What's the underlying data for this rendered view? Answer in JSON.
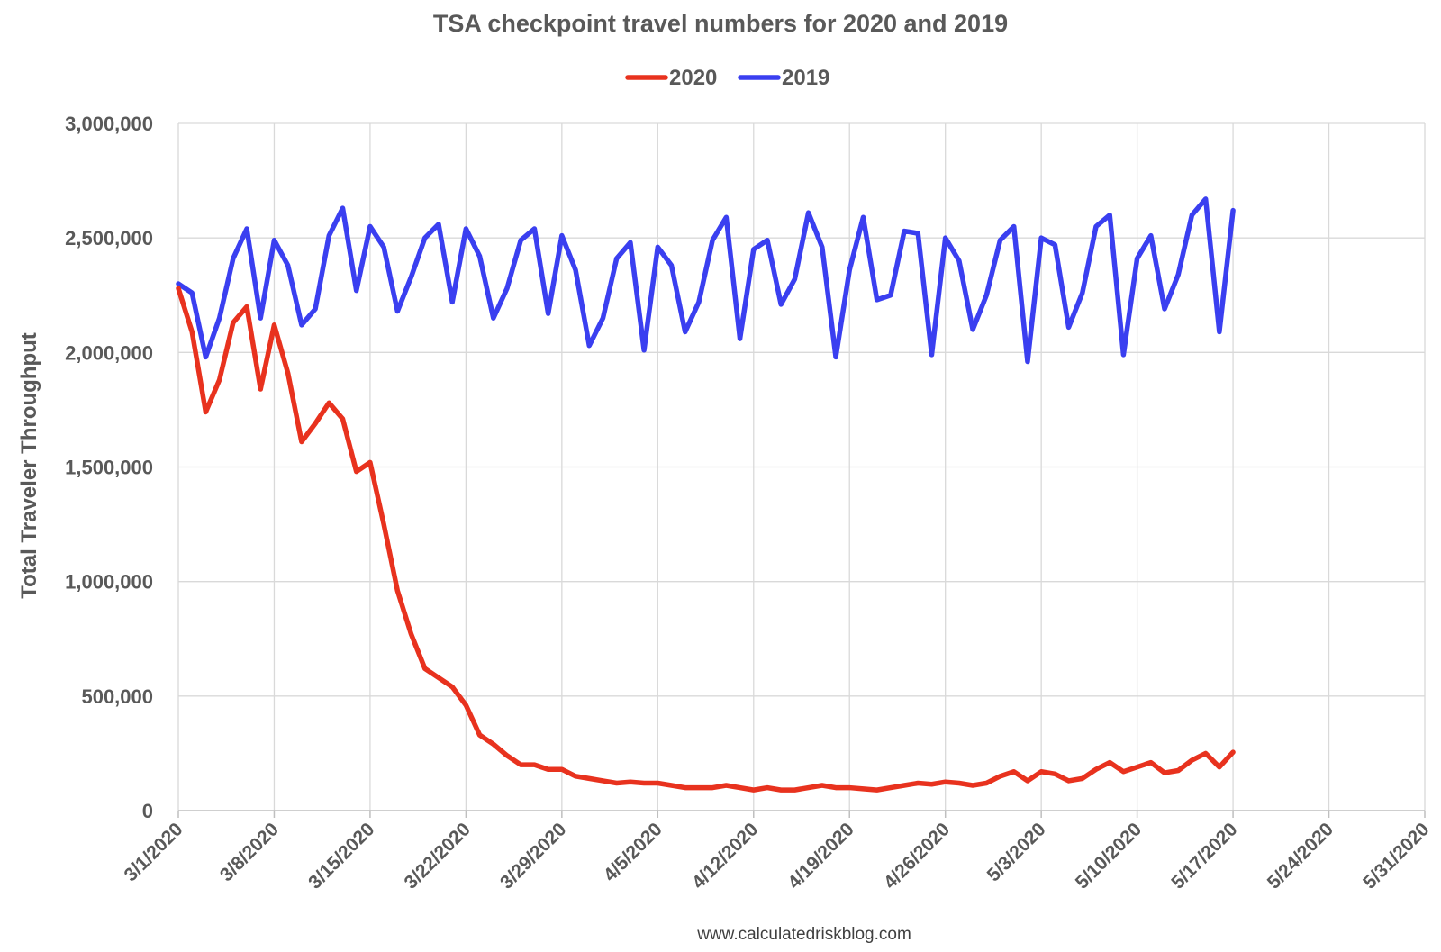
{
  "chart_data": {
    "type": "line",
    "title": "TSA checkpoint travel numbers for 2020 and 2019",
    "ylabel": "Total Traveler Throughput",
    "xlabel": "",
    "source_credit": "www.calculatedriskblog.com",
    "x_start": "3/1/2020",
    "x_end": "5/31/2020",
    "x_tick_labels": [
      "3/1/2020",
      "3/8/2020",
      "3/15/2020",
      "3/22/2020",
      "3/29/2020",
      "4/5/2020",
      "4/12/2020",
      "4/19/2020",
      "4/26/2020",
      "5/3/2020",
      "5/10/2020",
      "5/17/2020",
      "5/24/2020",
      "5/31/2020"
    ],
    "ylim": [
      0,
      3000000
    ],
    "y_tick_values": [
      0,
      500000,
      1000000,
      1500000,
      2000000,
      2500000,
      3000000
    ],
    "y_tick_labels": [
      "0",
      "500,000",
      "1,000,000",
      "1,500,000",
      "2,000,000",
      "2,500,000",
      "3,000,000"
    ],
    "grid": true,
    "legend_position": "top-center",
    "dates": [
      "3/1/2020",
      "3/2/2020",
      "3/3/2020",
      "3/4/2020",
      "3/5/2020",
      "3/6/2020",
      "3/7/2020",
      "3/8/2020",
      "3/9/2020",
      "3/10/2020",
      "3/11/2020",
      "3/12/2020",
      "3/13/2020",
      "3/14/2020",
      "3/15/2020",
      "3/16/2020",
      "3/17/2020",
      "3/18/2020",
      "3/19/2020",
      "3/20/2020",
      "3/21/2020",
      "3/22/2020",
      "3/23/2020",
      "3/24/2020",
      "3/25/2020",
      "3/26/2020",
      "3/27/2020",
      "3/28/2020",
      "3/29/2020",
      "3/30/2020",
      "3/31/2020",
      "4/1/2020",
      "4/2/2020",
      "4/3/2020",
      "4/4/2020",
      "4/5/2020",
      "4/6/2020",
      "4/7/2020",
      "4/8/2020",
      "4/9/2020",
      "4/10/2020",
      "4/11/2020",
      "4/12/2020",
      "4/13/2020",
      "4/14/2020",
      "4/15/2020",
      "4/16/2020",
      "4/17/2020",
      "4/18/2020",
      "4/19/2020",
      "4/20/2020",
      "4/21/2020",
      "4/22/2020",
      "4/23/2020",
      "4/24/2020",
      "4/25/2020",
      "4/26/2020",
      "4/27/2020",
      "4/28/2020",
      "4/29/2020",
      "4/30/2020",
      "5/1/2020",
      "5/2/2020",
      "5/3/2020",
      "5/4/2020",
      "5/5/2020",
      "5/6/2020",
      "5/7/2020",
      "5/8/2020",
      "5/9/2020",
      "5/10/2020",
      "5/11/2020",
      "5/12/2020",
      "5/13/2020",
      "5/14/2020",
      "5/15/2020",
      "5/16/2020",
      "5/17/2020"
    ],
    "series": [
      {
        "name": "2020",
        "color": "#e8321e",
        "values": [
          2280000,
          2090000,
          1740000,
          1880000,
          2130000,
          2200000,
          1840000,
          2120000,
          1910000,
          1610000,
          1690000,
          1780000,
          1710000,
          1480000,
          1520000,
          1250000,
          960000,
          770000,
          620000,
          580000,
          540000,
          460000,
          330000,
          290000,
          240000,
          200000,
          200000,
          180000,
          180000,
          150000,
          140000,
          130000,
          120000,
          125000,
          120000,
          120000,
          110000,
          100000,
          100000,
          100000,
          110000,
          100000,
          90000,
          100000,
          90000,
          90000,
          100000,
          110000,
          100000,
          100000,
          95000,
          90000,
          100000,
          110000,
          120000,
          115000,
          125000,
          120000,
          110000,
          120000,
          150000,
          170000,
          130000,
          170000,
          160000,
          130000,
          140000,
          180000,
          210000,
          170000,
          190000,
          210000,
          165000,
          175000,
          220000,
          250000,
          190000,
          255000
        ]
      },
      {
        "name": "2019",
        "color": "#3a3ff0",
        "values": [
          2300000,
          2260000,
          1980000,
          2150000,
          2410000,
          2540000,
          2150000,
          2490000,
          2380000,
          2120000,
          2190000,
          2510000,
          2630000,
          2270000,
          2550000,
          2460000,
          2180000,
          2330000,
          2500000,
          2560000,
          2220000,
          2540000,
          2420000,
          2150000,
          2280000,
          2490000,
          2540000,
          2170000,
          2510000,
          2360000,
          2030000,
          2150000,
          2410000,
          2480000,
          2010000,
          2460000,
          2380000,
          2090000,
          2220000,
          2490000,
          2590000,
          2060000,
          2450000,
          2490000,
          2210000,
          2320000,
          2610000,
          2460000,
          1980000,
          2360000,
          2590000,
          2230000,
          2250000,
          2530000,
          2520000,
          1990000,
          2500000,
          2400000,
          2100000,
          2250000,
          2490000,
          2550000,
          1960000,
          2500000,
          2470000,
          2110000,
          2260000,
          2550000,
          2600000,
          1990000,
          2410000,
          2510000,
          2190000,
          2340000,
          2600000,
          2670000,
          2090000,
          2620000
        ]
      }
    ]
  }
}
